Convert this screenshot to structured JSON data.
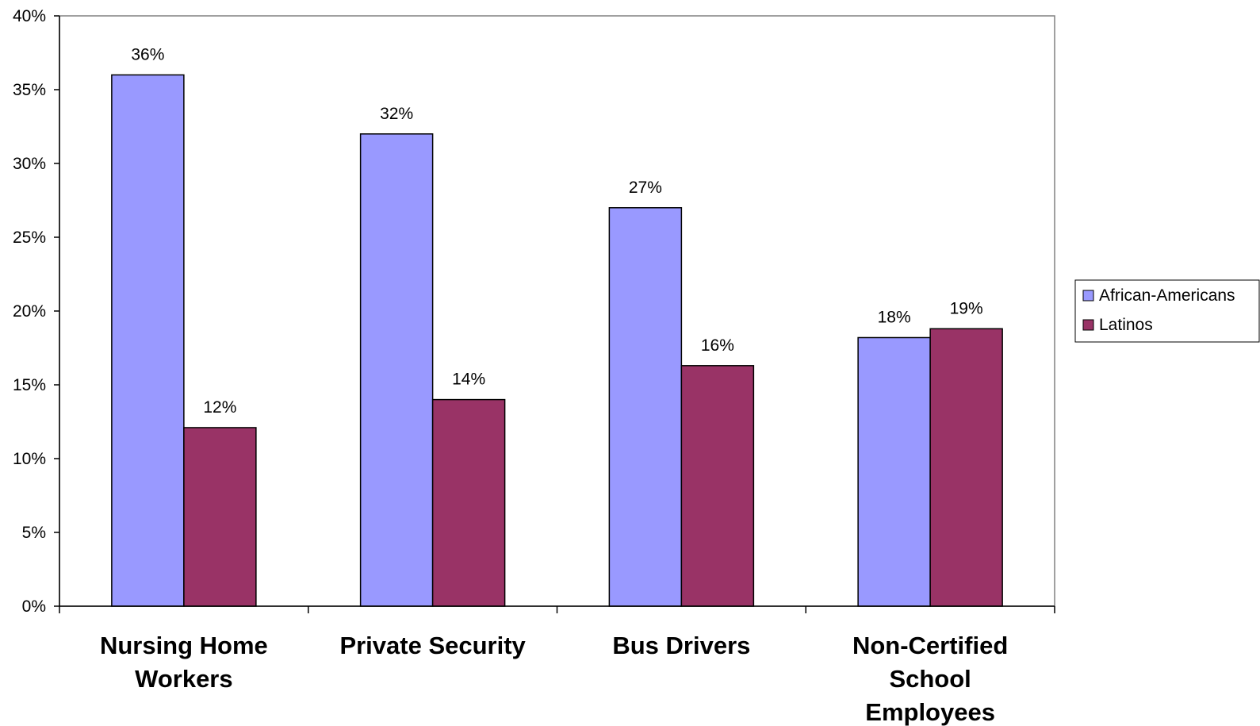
{
  "chart_data": {
    "type": "bar",
    "categories": [
      [
        "Nursing Home",
        "Workers"
      ],
      [
        "Private Security"
      ],
      [
        "Bus Drivers"
      ],
      [
        "Non-Certified",
        "School",
        "Employees"
      ]
    ],
    "series": [
      {
        "name": "African-Americans",
        "color": "#9999ff",
        "values": [
          36,
          32,
          27,
          18.2
        ],
        "labels": [
          "36%",
          "32%",
          "27%",
          "18%"
        ]
      },
      {
        "name": "Latinos",
        "color": "#993366",
        "values": [
          12.1,
          14,
          16.3,
          18.8
        ],
        "labels": [
          "12%",
          "14%",
          "16%",
          "19%"
        ]
      }
    ],
    "y_ticks": [
      0,
      5,
      10,
      15,
      20,
      25,
      30,
      35,
      40
    ],
    "y_tick_labels": [
      "0%",
      "5%",
      "10%",
      "15%",
      "20%",
      "25%",
      "30%",
      "35%",
      "40%"
    ],
    "ylim": [
      0,
      40
    ],
    "grid": false,
    "legend_position": "right"
  }
}
